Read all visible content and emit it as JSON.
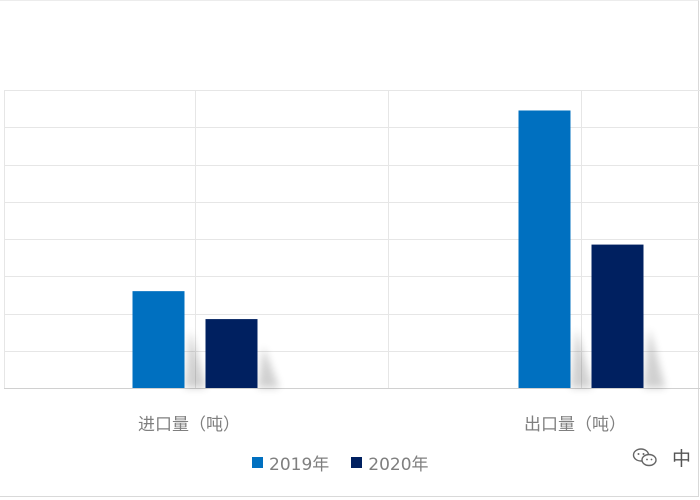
{
  "chart_data": {
    "type": "bar",
    "title": "",
    "xlabel": "",
    "ylabel": "",
    "categories": [
      "进口量（吨）",
      "出口量（吨）"
    ],
    "series": [
      {
        "name": "2019年",
        "values": [
          26,
          74.5
        ],
        "color": "#0070c0"
      },
      {
        "name": "2020年",
        "values": [
          18.5,
          38.5
        ],
        "color": "#002060"
      }
    ],
    "ylim": [
      0,
      80
    ],
    "grid": true,
    "legend": "bottom"
  },
  "watermark": {
    "icon": "wechat-icon",
    "text": "中"
  }
}
